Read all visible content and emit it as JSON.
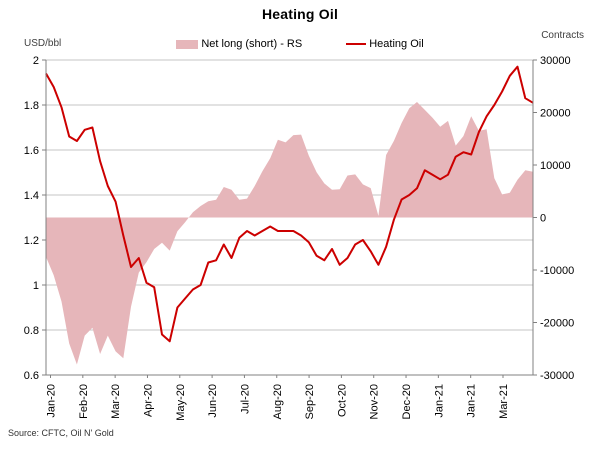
{
  "title": "Heating Oil",
  "source": "Source: CFTC, Oil N' Gold",
  "colors": {
    "area": "#e6b6ba",
    "line": "#cc0000",
    "grid": "#c6c6c6",
    "axis": "#808080",
    "text": "#000000"
  },
  "chart_data": {
    "type": "combo",
    "title": "Heating Oil",
    "legend_position": "top",
    "grid": "horizontal",
    "x_tick_labels": [
      "Jan-20",
      "Feb-20",
      "Mar-20",
      "Apr-20",
      "May-20",
      "Jun-20",
      "Jul-20",
      "Aug-20",
      "Sep-20",
      "Oct-20",
      "Nov-20",
      "Dec-20",
      "Jan-21",
      "Jan-21",
      "Mar-21"
    ],
    "x_tick_label_rotation": "vertical",
    "left_axis": {
      "label": "USD/bbl",
      "min": 0.6,
      "max": 2.0,
      "ticks": [
        {
          "label": "2",
          "value": 2.0
        },
        {
          "label": "1.8",
          "value": 1.8
        },
        {
          "label": "1.6",
          "value": 1.6
        },
        {
          "label": "1.4",
          "value": 1.4
        },
        {
          "label": "1.2",
          "value": 1.2
        },
        {
          "label": "1",
          "value": 1.0
        },
        {
          "label": "0.8",
          "value": 0.8
        },
        {
          "label": "0.6",
          "value": 0.6
        }
      ]
    },
    "right_axis": {
      "label": "Contracts",
      "min": -30000,
      "max": 30000,
      "ticks": [
        {
          "label": "30000",
          "value": 30000
        },
        {
          "label": "20000",
          "value": 20000
        },
        {
          "label": "10000",
          "value": 10000
        },
        {
          "label": "0",
          "value": 0
        },
        {
          "label": "-10000",
          "value": -10000
        },
        {
          "label": "-20000",
          "value": -20000
        },
        {
          "label": "-30000",
          "value": -30000
        }
      ]
    },
    "series": [
      {
        "name": "Net long (short) - RS",
        "type": "area",
        "axis": "right",
        "color": "#e6b6ba",
        "values": [
          -7500,
          -11000,
          -16000,
          -24000,
          -28000,
          -22500,
          -21000,
          -26000,
          -22500,
          -25500,
          -26800,
          -17000,
          -10500,
          -8500,
          -6000,
          -4800,
          -6300,
          -2600,
          -900,
          1000,
          2200,
          3100,
          3400,
          5800,
          5300,
          3400,
          3600,
          6000,
          8800,
          11300,
          14800,
          14300,
          15700,
          15800,
          11800,
          8600,
          6500,
          5300,
          5400,
          8000,
          8200,
          6300,
          5600,
          300,
          11900,
          14600,
          18000,
          20800,
          22000,
          20500,
          19000,
          17300,
          18400,
          13700,
          15500,
          19300,
          16500,
          16800,
          7500,
          4400,
          4700,
          7200,
          9000,
          8700
        ]
      },
      {
        "name": "Heating Oil",
        "type": "line",
        "axis": "left",
        "color": "#cc0000",
        "values": [
          1.94,
          1.88,
          1.79,
          1.66,
          1.64,
          1.69,
          1.7,
          1.55,
          1.44,
          1.37,
          1.22,
          1.08,
          1.12,
          1.01,
          0.99,
          0.78,
          0.75,
          0.9,
          0.94,
          0.98,
          1.0,
          1.1,
          1.11,
          1.18,
          1.12,
          1.21,
          1.24,
          1.22,
          1.24,
          1.26,
          1.24,
          1.24,
          1.24,
          1.22,
          1.19,
          1.13,
          1.11,
          1.16,
          1.09,
          1.12,
          1.18,
          1.2,
          1.15,
          1.09,
          1.17,
          1.29,
          1.38,
          1.4,
          1.43,
          1.51,
          1.49,
          1.47,
          1.49,
          1.57,
          1.59,
          1.58,
          1.68,
          1.75,
          1.8,
          1.86,
          1.93,
          1.97,
          1.83,
          1.81
        ]
      }
    ]
  }
}
